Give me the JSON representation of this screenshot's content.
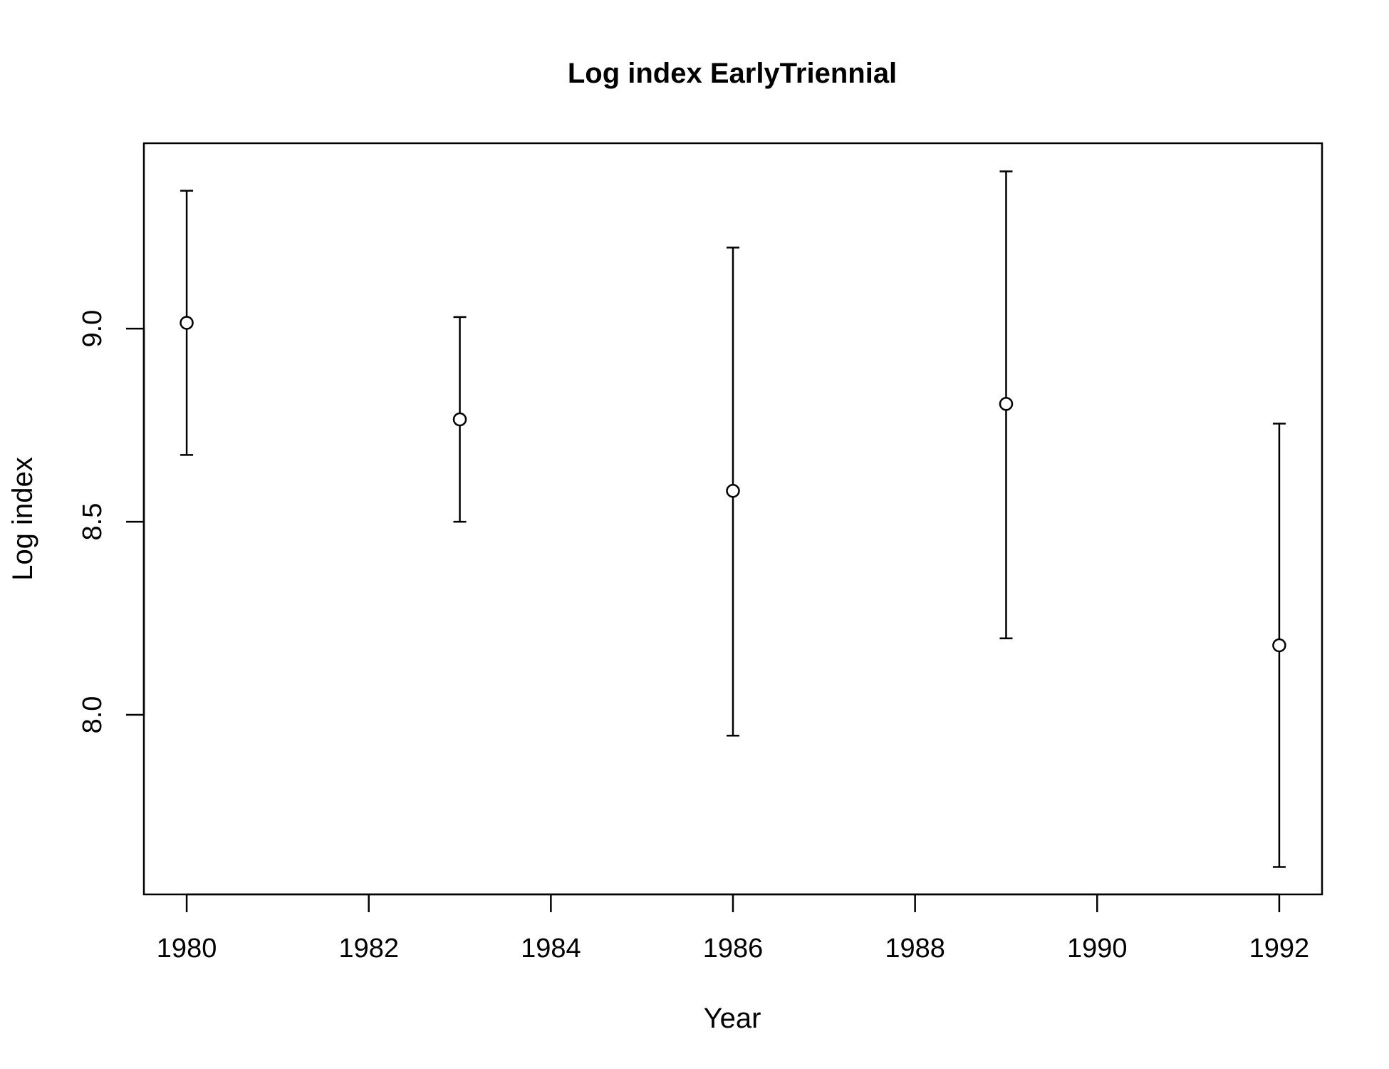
{
  "chart_data": {
    "type": "scatter",
    "title": "Log index EarlyTriennial",
    "xlabel": "Year",
    "ylabel": "Log index",
    "xlim": [
      1979.53,
      1992.47
    ],
    "ylim": [
      7.535,
      9.48
    ],
    "xticks": [
      1980,
      1982,
      1984,
      1986,
      1988,
      1990,
      1992
    ],
    "xtick_labels": [
      "1980",
      "1982",
      "1984",
      "1986",
      "1988",
      "1990",
      "1992"
    ],
    "yticks": [
      8.0,
      8.5,
      9.0
    ],
    "ytick_labels": [
      "8.0",
      "8.5",
      "9.0"
    ],
    "grid": false,
    "points": [
      {
        "x": 1980,
        "y": 9.015,
        "lower": 8.673,
        "upper": 9.357
      },
      {
        "x": 1983,
        "y": 8.765,
        "lower": 8.5,
        "upper": 9.03
      },
      {
        "x": 1986,
        "y": 8.58,
        "lower": 7.946,
        "upper": 9.21
      },
      {
        "x": 1989,
        "y": 8.805,
        "lower": 8.198,
        "upper": 9.407
      },
      {
        "x": 1992,
        "y": 8.18,
        "lower": 7.606,
        "upper": 8.754
      }
    ]
  }
}
